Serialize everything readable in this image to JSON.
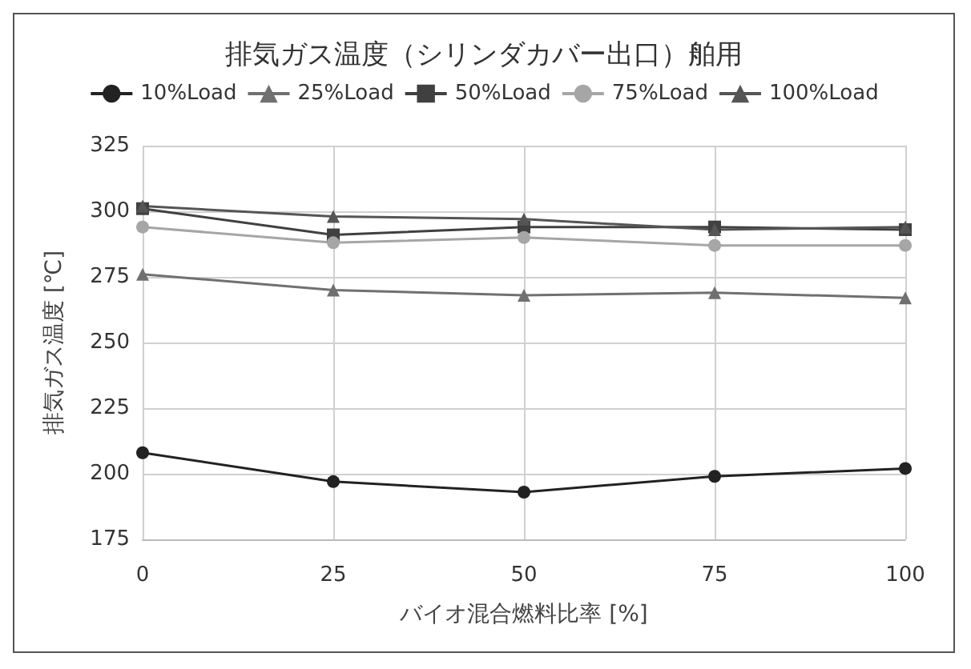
{
  "chart_data": {
    "type": "line",
    "title": "排気ガス温度（シリンダカバー出口）舶用",
    "xlabel": "バイオ混合燃料比率 [%]",
    "ylabel": "排気ガス温度 [℃]",
    "x": [
      0,
      25,
      50,
      75,
      100
    ],
    "series": [
      {
        "name": "10%Load",
        "color": "#222222",
        "marker": "circle",
        "values": [
          208,
          197,
          193,
          199,
          202
        ]
      },
      {
        "name": "25%Load",
        "color": "#707070",
        "marker": "triangle",
        "values": [
          276,
          270,
          268,
          269,
          267
        ]
      },
      {
        "name": "50%Load",
        "color": "#404040",
        "marker": "square",
        "values": [
          301,
          291,
          294,
          294,
          293
        ]
      },
      {
        "name": "75%Load",
        "color": "#a6a6a6",
        "marker": "circle",
        "values": [
          294,
          288,
          290,
          287,
          287
        ]
      },
      {
        "name": "100%Load",
        "color": "#555555",
        "marker": "triangle",
        "values": [
          302,
          298,
          297,
          293,
          294
        ]
      }
    ],
    "xlim": [
      0,
      100
    ],
    "xticks": [
      0,
      25,
      50,
      75,
      100
    ],
    "ylim": [
      175,
      325
    ],
    "yticks": [
      175,
      200,
      225,
      250,
      275,
      300,
      325
    ],
    "grid": true,
    "legend": "top",
    "line_style": "solid"
  }
}
